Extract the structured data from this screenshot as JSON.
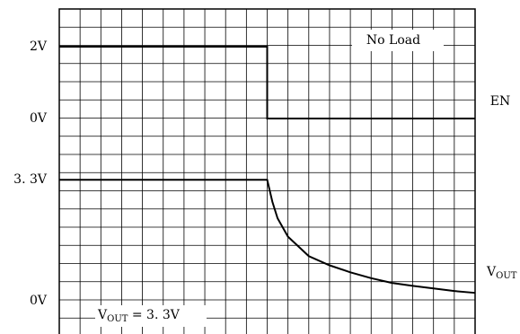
{
  "chart_data": [
    {
      "type": "line",
      "name": "EN",
      "x": [
        0,
        10,
        10,
        20
      ],
      "values": [
        2,
        2,
        0,
        0
      ],
      "color": "#000000",
      "xlim": [
        0,
        20
      ],
      "ylim": [
        -6,
        3.05
      ],
      "yticks": [
        {
          "value": 2,
          "label": "2V"
        },
        {
          "value": 0,
          "label": "0V"
        }
      ],
      "annotation": "No Load"
    },
    {
      "type": "line",
      "name": "VOUT",
      "x": [
        0,
        10,
        10.25,
        10.5,
        11,
        12,
        13,
        14,
        15,
        16,
        17,
        18,
        19,
        20
      ],
      "values": [
        3.3,
        3.3,
        2.7,
        2.25,
        1.75,
        1.22,
        0.97,
        0.78,
        0.62,
        0.49,
        0.41,
        0.34,
        0.27,
        0.22
      ],
      "color": "#000000",
      "xlim": [
        0,
        20
      ],
      "ylim": [
        -0.9,
        7.95
      ],
      "yticks": [
        {
          "value": 3.3,
          "label": "3. 3V"
        },
        {
          "value": 0,
          "label": "0V"
        }
      ],
      "label": {
        "main": "V",
        "sub": "OUT"
      },
      "annotation": {
        "main": "V",
        "sub": "OUT",
        "rest": " = 3. 3V"
      }
    }
  ]
}
